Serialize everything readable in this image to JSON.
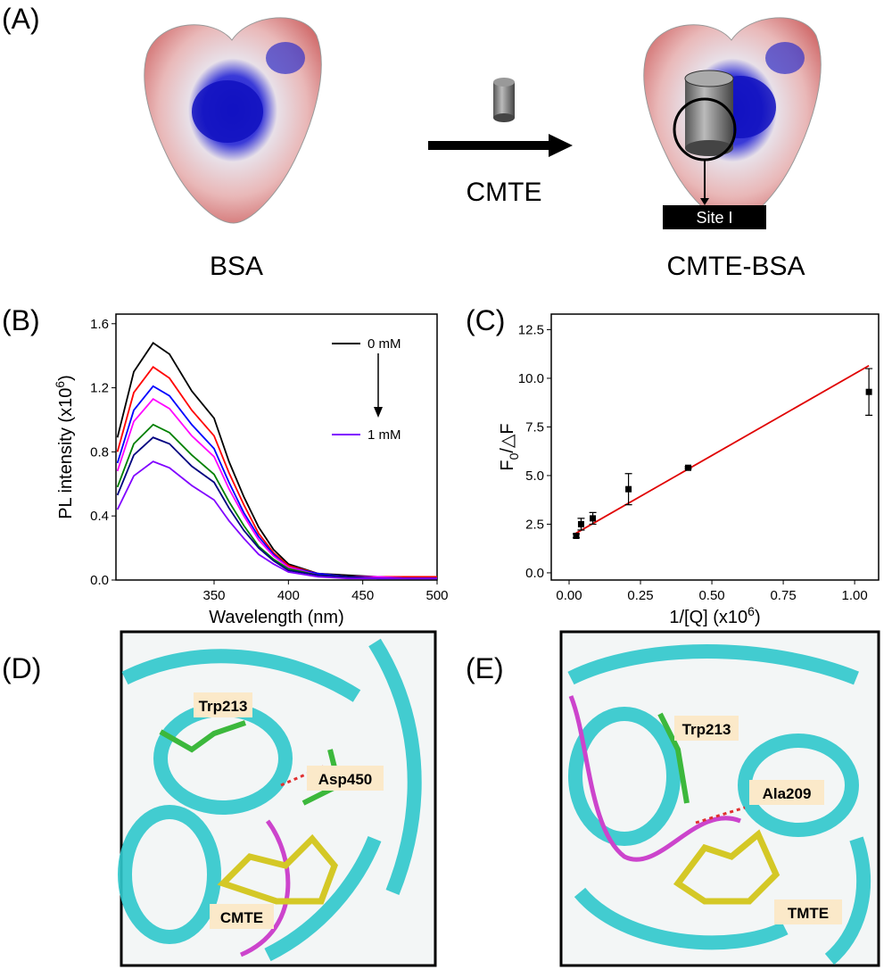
{
  "panel_labels": [
    "(A)",
    "(B)",
    "(C)",
    "(D)",
    "(E)"
  ],
  "panel_a": {
    "left_label": "BSA",
    "arrow_label": "CMTE",
    "right_label": "CMTE-BSA",
    "site_label": "Site I"
  },
  "chart_data": [
    {
      "type": "line",
      "xlabel": "Wavelength (nm)",
      "ylabel": [
        "PL intensity (x10",
        "6",
        ")"
      ],
      "x": [
        285,
        296,
        309,
        320,
        335,
        350,
        360,
        370,
        380,
        390,
        400,
        420,
        440,
        460,
        480,
        500
      ],
      "series": [
        {
          "name": "0 mM",
          "color": "#000000",
          "values": [
            0.89,
            1.3,
            1.48,
            1.41,
            1.18,
            1.01,
            0.74,
            0.52,
            0.33,
            0.19,
            0.1,
            0.04,
            0.03,
            0.02,
            0.02,
            0.02
          ]
        },
        {
          "color": "#ff0000",
          "values": [
            0.8,
            1.17,
            1.33,
            1.26,
            1.06,
            0.9,
            0.67,
            0.47,
            0.29,
            0.17,
            0.09,
            0.04,
            0.02,
            0.02,
            0.02,
            0.02
          ]
        },
        {
          "color": "#0000ff",
          "values": [
            0.73,
            1.06,
            1.21,
            1.15,
            0.97,
            0.82,
            0.61,
            0.42,
            0.27,
            0.16,
            0.08,
            0.04,
            0.02,
            0.02,
            0.01,
            0.01
          ]
        },
        {
          "color": "#ff00ff",
          "values": [
            0.68,
            0.99,
            1.13,
            1.07,
            0.9,
            0.77,
            0.57,
            0.4,
            0.25,
            0.15,
            0.08,
            0.03,
            0.02,
            0.02,
            0.01,
            0.01
          ]
        },
        {
          "color": "#008000",
          "values": [
            0.58,
            0.85,
            0.97,
            0.92,
            0.78,
            0.66,
            0.49,
            0.34,
            0.21,
            0.13,
            0.07,
            0.03,
            0.02,
            0.01,
            0.01,
            0.01
          ]
        },
        {
          "color": "#000080",
          "values": [
            0.53,
            0.78,
            0.89,
            0.85,
            0.71,
            0.61,
            0.45,
            0.31,
            0.2,
            0.12,
            0.06,
            0.03,
            0.02,
            0.01,
            0.01,
            0.01
          ]
        },
        {
          "name": "1 mM",
          "color": "#8000ff",
          "values": [
            0.44,
            0.65,
            0.74,
            0.7,
            0.59,
            0.5,
            0.37,
            0.26,
            0.16,
            0.1,
            0.05,
            0.02,
            0.01,
            0.01,
            0.01,
            0.01
          ]
        }
      ],
      "xlim": [
        284,
        500
      ],
      "ylim": [
        0,
        1.66
      ],
      "xticks": [
        350,
        400,
        450,
        500
      ],
      "yticks": [
        {
          "value": 0,
          "label": "0.0"
        },
        0.4,
        0.8,
        1.2,
        1.6
      ]
    },
    {
      "type": "scatter",
      "xlabel": [
        "1/[Q] (x10",
        "6",
        ")"
      ],
      "ylabel": [
        "F",
        "0",
        "/△F"
      ],
      "x": [
        0.025,
        0.042,
        0.083,
        0.208,
        0.417,
        1.05
      ],
      "values": [
        1.9,
        2.5,
        2.8,
        4.3,
        5.4,
        9.3
      ],
      "errors": [
        0.1,
        0.3,
        0.3,
        0.8,
        0.05,
        1.2
      ],
      "color": "#000000",
      "fit": {
        "x": [
          0.02,
          1.05
        ],
        "values": [
          2.0,
          10.65
        ],
        "color": "#e00000"
      },
      "xlim": [
        -0.0625,
        1.084
      ],
      "ylim": [
        -0.37,
        13.3
      ],
      "xticks": [
        {
          "value": 0,
          "label": "0.00"
        },
        0.25,
        {
          "value": 0.5,
          "label": "0.50"
        },
        0.75,
        {
          "value": 1,
          "label": "1.00"
        }
      ],
      "yticks": [
        {
          "value": 0,
          "label": "0.0"
        },
        2.5,
        {
          "value": 5,
          "label": "5.0"
        },
        7.5,
        {
          "value": 10,
          "label": "10.0"
        },
        12.5
      ]
    }
  ],
  "panel_d": {
    "labels": [
      "Trp213",
      "Asp450",
      "CMTE"
    ]
  },
  "panel_e": {
    "labels": [
      "Trp213",
      "Ala209",
      "TMTE"
    ]
  }
}
